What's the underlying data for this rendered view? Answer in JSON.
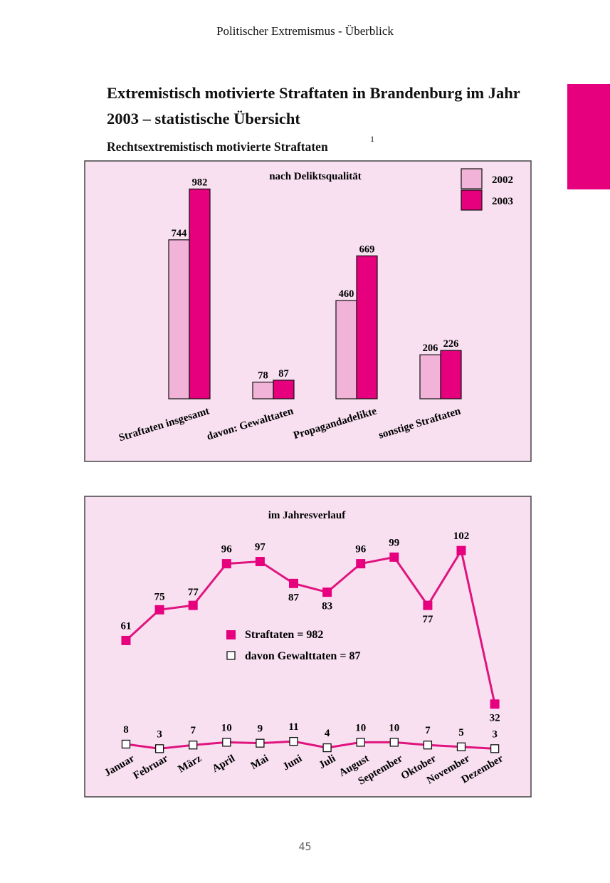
{
  "header": {
    "running_title": "Politischer Extremismus - Überblick"
  },
  "colors": {
    "panel_bg": "#f8e0f1",
    "series_2002": "#f2b3d8",
    "series_2003": "#e6007e",
    "line": "#e0147e",
    "marker_open": "#ffffff",
    "side_tab": "#e6007e"
  },
  "page": {
    "title": "Extremistisch motivierte Straftaten in Brandenburg im Jahr 2003 – statistische Übersicht",
    "subtitle": "Rechtsextremistisch motivierte Straftaten",
    "footnote_marker": "1",
    "page_number": "45"
  },
  "chart_data": [
    {
      "type": "bar",
      "title": "nach Deliktsqualität",
      "categories": [
        "Straftaten insgesamt",
        "davon: Gewalttaten",
        "Propagandadelikte",
        "sonstige Straftaten"
      ],
      "series": [
        {
          "name": "2002",
          "values": [
            744,
            78,
            460,
            206
          ],
          "color": "#f2b3d8"
        },
        {
          "name": "2003",
          "values": [
            982,
            87,
            669,
            226
          ],
          "color": "#e6007e"
        }
      ],
      "ylim": [
        0,
        1000
      ],
      "legend_position": "top-right",
      "grid": false
    },
    {
      "type": "line",
      "title": "im Jahresverlauf",
      "categories": [
        "Januar",
        "Februar",
        "März",
        "April",
        "Mai",
        "Juni",
        "Juli",
        "August",
        "September",
        "Oktober",
        "November",
        "Dezember"
      ],
      "series": [
        {
          "name": "Straftaten = 982",
          "values": [
            61,
            75,
            77,
            96,
            97,
            87,
            83,
            96,
            99,
            77,
            102,
            32
          ],
          "marker": "filled-square"
        },
        {
          "name": "davon Gewalttaten = 87",
          "values": [
            8,
            3,
            7,
            10,
            9,
            11,
            4,
            10,
            10,
            7,
            5,
            3
          ],
          "marker": "open-square"
        }
      ],
      "legend_position": "center",
      "grid": false
    }
  ]
}
